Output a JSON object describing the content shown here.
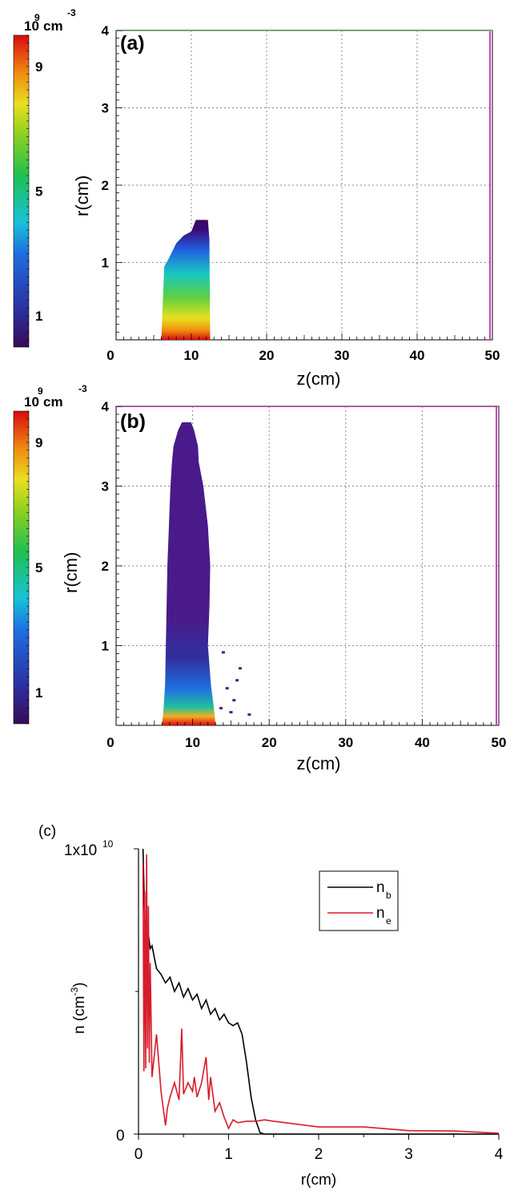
{
  "chart_data": [
    {
      "type": "heatmap",
      "panel_label": "(a)",
      "xlabel": "z(cm)",
      "ylabel": "r(cm)",
      "xlim": [
        0,
        50
      ],
      "ylim": [
        0,
        4
      ],
      "x_ticks": [
        "0",
        "10",
        "20",
        "30",
        "40",
        "50"
      ],
      "y_ticks": [
        "1",
        "2",
        "3",
        "4"
      ],
      "grid": true,
      "colorbar": {
        "unit_base": "10",
        "unit_exp": "9",
        "unit_name": "cm",
        "unit_name_exp": "-3",
        "ticks": [
          "9",
          "5",
          "1"
        ],
        "tick_values": [
          9,
          5,
          1
        ],
        "range": [
          0,
          10
        ]
      },
      "region": {
        "z_start": 6,
        "z_end": 12.5,
        "r_boundary": [
          [
            6,
            0
          ],
          [
            6.4,
            0.95
          ],
          [
            7,
            1.05
          ],
          [
            8,
            1.25
          ],
          [
            9,
            1.35
          ],
          [
            10,
            1.4
          ],
          [
            10.6,
            1.55
          ],
          [
            12.2,
            1.55
          ],
          [
            12.4,
            1.3
          ],
          [
            12.5,
            0
          ]
        ],
        "peak_density": 10,
        "note_density_profile": "highest near r=0, decreasing with r"
      },
      "annotations_lines": [
        "z=49.5 magenta boundary"
      ]
    },
    {
      "type": "heatmap",
      "panel_label": "(b)",
      "xlabel": "z(cm)",
      "ylabel": "r(cm)",
      "xlim": [
        0,
        50
      ],
      "ylim": [
        0,
        4
      ],
      "x_ticks": [
        "0",
        "10",
        "20",
        "30",
        "40",
        "50"
      ],
      "y_ticks": [
        "1",
        "2",
        "3",
        "4"
      ],
      "grid": true,
      "colorbar": {
        "unit_base": "10",
        "unit_exp": "9",
        "unit_name": "cm",
        "unit_name_exp": "-3",
        "ticks": [
          "9",
          "5",
          "1"
        ],
        "tick_values": [
          9,
          5,
          1
        ],
        "range": [
          0,
          10
        ]
      },
      "region": {
        "z_start": 6,
        "z_end": 13,
        "r_max": 3.8,
        "peak_density": 10
      }
    },
    {
      "type": "line",
      "panel_label": "(c)",
      "xlabel": "r(cm)",
      "ylabel_main": "n (cm",
      "ylabel_exp": "-3",
      "ylabel_close": ")",
      "xlim": [
        0,
        4
      ],
      "ylim": [
        0,
        10000000000
      ],
      "x_ticks": [
        "0",
        "1",
        "2",
        "3",
        "4"
      ],
      "y_tick_zero": "0",
      "y_tick_top_base": "1x10",
      "y_tick_top_exp": "10",
      "legend_position": "top-right",
      "series": [
        {
          "name_base": "n",
          "name_sub": "b",
          "color": "#000000",
          "x": [
            0.05,
            0.07,
            0.09,
            0.11,
            0.13,
            0.15,
            0.2,
            0.25,
            0.3,
            0.35,
            0.4,
            0.45,
            0.5,
            0.55,
            0.6,
            0.65,
            0.7,
            0.75,
            0.8,
            0.85,
            0.9,
            0.95,
            1.0,
            1.05,
            1.1,
            1.15,
            1.2,
            1.25,
            1.3,
            1.35,
            1.4,
            1.5,
            2.0,
            3.0,
            4.0
          ],
          "y": [
            10000000000,
            7500000000,
            7200000000,
            7000000000,
            6500000000,
            6600000000,
            5800000000,
            5600000000,
            5300000000,
            5500000000,
            5000000000,
            5300000000,
            4800000000,
            5100000000,
            4700000000,
            4900000000,
            4400000000,
            4700000000,
            4200000000,
            4400000000,
            4000000000,
            4200000000,
            3900000000,
            3800000000,
            3900000000,
            3500000000,
            2500000000,
            1300000000,
            500000000,
            50000000,
            0,
            0,
            0,
            0,
            0
          ]
        },
        {
          "name_base": "n",
          "name_sub": "e",
          "color": "#d81b2a",
          "x": [
            0.05,
            0.06,
            0.07,
            0.08,
            0.09,
            0.1,
            0.11,
            0.12,
            0.13,
            0.15,
            0.2,
            0.25,
            0.3,
            0.32,
            0.35,
            0.4,
            0.45,
            0.48,
            0.5,
            0.55,
            0.6,
            0.62,
            0.65,
            0.7,
            0.75,
            0.78,
            0.8,
            0.85,
            0.9,
            0.95,
            1.0,
            1.05,
            1.1,
            1.2,
            1.3,
            1.4,
            1.5,
            2.0,
            2.5,
            3.0,
            3.5,
            4.0
          ],
          "y": [
            9500000000,
            2200000000,
            8500000000,
            2300000000,
            9800000000,
            3000000000,
            8000000000,
            2500000000,
            6000000000,
            2000000000,
            3500000000,
            1500000000,
            300000000,
            900000000,
            1300000000,
            1800000000,
            1200000000,
            3700000000,
            1400000000,
            1800000000,
            1500000000,
            2000000000,
            1300000000,
            1800000000,
            2700000000,
            1200000000,
            2000000000,
            800000000,
            1100000000,
            600000000,
            200000000,
            500000000,
            400000000,
            450000000,
            450000000,
            500000000,
            450000000,
            250000000,
            250000000,
            120000000,
            110000000,
            30000000
          ]
        }
      ]
    }
  ]
}
